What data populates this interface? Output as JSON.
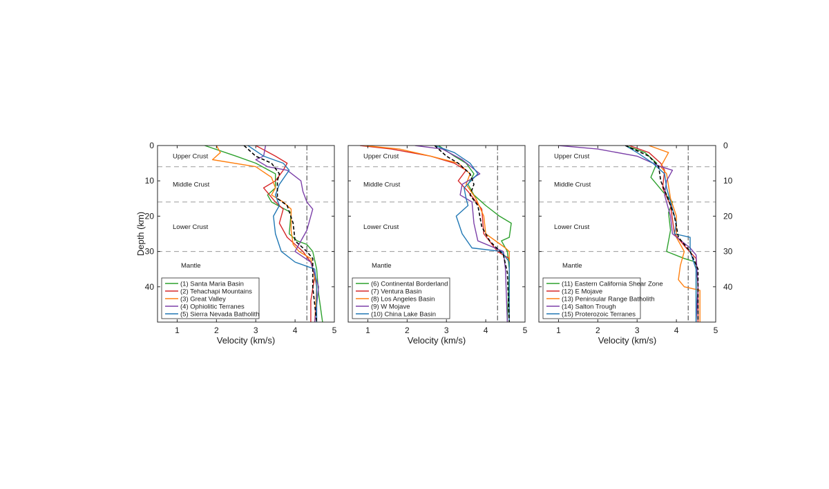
{
  "chart_data": [
    {
      "type": "line",
      "xlabel": "Velocity (km/s)",
      "ylabel": "Depth (km)",
      "xlim": [
        0.5,
        5
      ],
      "ylim": [
        0,
        50
      ],
      "y_reversed": true,
      "xticks": [
        "1",
        "2",
        "3",
        "4",
        "5"
      ],
      "yticks": [
        "0",
        "10",
        "20",
        "30",
        "40"
      ],
      "layer_boundaries": [
        6,
        16,
        30
      ],
      "reference_velocity": 4.3,
      "layers": [
        {
          "label": "Upper Crust",
          "depth": 3
        },
        {
          "label": "Middle Crust",
          "depth": 11
        },
        {
          "label": "Lower Crust",
          "depth": 23
        },
        {
          "label": "Mantle",
          "depth": 34
        }
      ],
      "legend_position": "bottom-right",
      "average_profile": {
        "color": "#000000",
        "points": [
          [
            2.7,
            0
          ],
          [
            3.0,
            3
          ],
          [
            3.4,
            5
          ],
          [
            3.6,
            8
          ],
          [
            3.55,
            10
          ],
          [
            3.55,
            15
          ],
          [
            3.8,
            17
          ],
          [
            3.95,
            22
          ],
          [
            4.0,
            27
          ],
          [
            4.3,
            30
          ],
          [
            4.45,
            32
          ],
          [
            4.45,
            40
          ],
          [
            4.55,
            50
          ]
        ]
      },
      "series": [
        {
          "name": "(1) Santa Maria Basin",
          "color": "#2ca02c",
          "points": [
            [
              1.7,
              0
            ],
            [
              2.5,
              3
            ],
            [
              3.0,
              5
            ],
            [
              3.5,
              8
            ],
            [
              3.5,
              12
            ],
            [
              3.3,
              14
            ],
            [
              3.4,
              16
            ],
            [
              3.9,
              19
            ],
            [
              3.85,
              25
            ],
            [
              4.05,
              27
            ],
            [
              4.3,
              28
            ],
            [
              4.45,
              30
            ],
            [
              4.55,
              35
            ],
            [
              4.6,
              42
            ],
            [
              4.7,
              50
            ]
          ]
        },
        {
          "name": "(2) Tehachapi Mountains",
          "color": "#d62728",
          "points": [
            [
              3.0,
              0
            ],
            [
              3.5,
              3
            ],
            [
              3.8,
              5
            ],
            [
              3.7,
              7
            ],
            [
              3.5,
              10
            ],
            [
              3.2,
              12
            ],
            [
              3.5,
              16
            ],
            [
              3.7,
              18
            ],
            [
              3.6,
              22
            ],
            [
              3.8,
              26
            ],
            [
              4.2,
              30
            ],
            [
              4.4,
              33
            ],
            [
              4.5,
              37
            ],
            [
              4.4,
              44
            ],
            [
              4.4,
              50
            ]
          ]
        },
        {
          "name": "(3) Great Valley",
          "color": "#ff7f0e",
          "points": [
            [
              2.0,
              0
            ],
            [
              2.1,
              2
            ],
            [
              1.9,
              4
            ],
            [
              3.0,
              6
            ],
            [
              3.4,
              9
            ],
            [
              3.5,
              12
            ],
            [
              3.4,
              14
            ],
            [
              3.7,
              16
            ],
            [
              3.9,
              18
            ],
            [
              3.9,
              24
            ],
            [
              3.95,
              28
            ],
            [
              4.1,
              30
            ],
            [
              4.4,
              32
            ],
            [
              4.55,
              40
            ],
            [
              4.5,
              50
            ]
          ]
        },
        {
          "name": "(4) Ophiolitic Terranes",
          "color": "#7b3fa8",
          "points": [
            [
              3.25,
              0
            ],
            [
              3.2,
              3
            ],
            [
              3.0,
              4
            ],
            [
              3.3,
              6
            ],
            [
              3.8,
              7
            ],
            [
              4.15,
              10
            ],
            [
              4.2,
              13
            ],
            [
              4.3,
              16
            ],
            [
              4.45,
              18
            ],
            [
              4.3,
              24
            ],
            [
              4.1,
              28
            ],
            [
              4.0,
              30
            ],
            [
              4.4,
              33
            ],
            [
              4.6,
              40
            ],
            [
              4.5,
              50
            ]
          ]
        },
        {
          "name": "(5) Sierra Nevada Batholith",
          "color": "#1f77b4",
          "points": [
            [
              2.8,
              0
            ],
            [
              3.2,
              3
            ],
            [
              3.7,
              5
            ],
            [
              3.85,
              7
            ],
            [
              3.6,
              11
            ],
            [
              3.5,
              14
            ],
            [
              3.6,
              17
            ],
            [
              3.45,
              20
            ],
            [
              3.5,
              25
            ],
            [
              3.65,
              30
            ],
            [
              4.0,
              33
            ],
            [
              4.5,
              35
            ],
            [
              4.55,
              40
            ],
            [
              4.55,
              50
            ]
          ]
        }
      ]
    },
    {
      "type": "line",
      "xlabel": "Velocity (km/s)",
      "ylabel": "",
      "xlim": [
        0.5,
        5
      ],
      "ylim": [
        0,
        50
      ],
      "y_reversed": true,
      "xticks": [
        "1",
        "2",
        "3",
        "4",
        "5"
      ],
      "yticks": [],
      "layer_boundaries": [
        6,
        16,
        30
      ],
      "reference_velocity": 4.3,
      "layers": [
        {
          "label": "Upper Crust",
          "depth": 3
        },
        {
          "label": "Middle Crust",
          "depth": 11
        },
        {
          "label": "Lower Crust",
          "depth": 23
        },
        {
          "label": "Mantle",
          "depth": 34
        }
      ],
      "legend_position": "bottom-right",
      "average_profile": {
        "color": "#000000",
        "points": [
          [
            2.7,
            0
          ],
          [
            3.0,
            3
          ],
          [
            3.3,
            5
          ],
          [
            3.6,
            8
          ],
          [
            3.7,
            11
          ],
          [
            3.6,
            14
          ],
          [
            3.8,
            17
          ],
          [
            3.9,
            23
          ],
          [
            4.1,
            27
          ],
          [
            4.45,
            31
          ],
          [
            4.55,
            36
          ],
          [
            4.6,
            50
          ]
        ]
      },
      "series": [
        {
          "name": "(6) Continental Borderland",
          "color": "#2ca02c",
          "points": [
            [
              2.8,
              0
            ],
            [
              3.2,
              3
            ],
            [
              3.5,
              5
            ],
            [
              3.7,
              8
            ],
            [
              3.55,
              11
            ],
            [
              3.7,
              14
            ],
            [
              4.0,
              17
            ],
            [
              4.35,
              20
            ],
            [
              4.65,
              22
            ],
            [
              4.6,
              26
            ],
            [
              4.4,
              27
            ],
            [
              4.55,
              30
            ],
            [
              4.6,
              35
            ],
            [
              4.55,
              50
            ]
          ]
        },
        {
          "name": "(7) Ventura Basin",
          "color": "#d62728",
          "points": [
            [
              0.8,
              0
            ],
            [
              1.6,
              1
            ],
            [
              2.6,
              3
            ],
            [
              3.2,
              5
            ],
            [
              3.5,
              7
            ],
            [
              3.3,
              10
            ],
            [
              3.55,
              13
            ],
            [
              3.9,
              18
            ],
            [
              3.95,
              25
            ],
            [
              4.3,
              30
            ],
            [
              4.6,
              32
            ],
            [
              4.6,
              50
            ]
          ]
        },
        {
          "name": "(8) Los Angeles Basin",
          "color": "#ff7f0e",
          "points": [
            [
              0.9,
              0
            ],
            [
              1.8,
              1
            ],
            [
              2.6,
              3
            ],
            [
              3.3,
              5
            ],
            [
              3.6,
              8
            ],
            [
              3.5,
              11
            ],
            [
              3.75,
              15
            ],
            [
              3.95,
              20
            ],
            [
              4.0,
              25
            ],
            [
              4.5,
              29
            ],
            [
              4.6,
              30
            ],
            [
              4.6,
              50
            ]
          ]
        },
        {
          "name": "(9) W Mojave",
          "color": "#7b3fa8",
          "points": [
            [
              2.2,
              0
            ],
            [
              2.9,
              1
            ],
            [
              3.4,
              4
            ],
            [
              3.85,
              8
            ],
            [
              3.4,
              11
            ],
            [
              3.35,
              14
            ],
            [
              3.65,
              16
            ],
            [
              3.7,
              22
            ],
            [
              3.8,
              27
            ],
            [
              4.45,
              30
            ],
            [
              4.5,
              35
            ],
            [
              4.55,
              50
            ]
          ]
        },
        {
          "name": "(10) China Lake Basin",
          "color": "#1f77b4",
          "points": [
            [
              2.7,
              0
            ],
            [
              3.2,
              2
            ],
            [
              3.6,
              5
            ],
            [
              3.8,
              8
            ],
            [
              3.45,
              12
            ],
            [
              3.5,
              15
            ],
            [
              3.55,
              17
            ],
            [
              3.25,
              20
            ],
            [
              3.4,
              25
            ],
            [
              3.65,
              29
            ],
            [
              4.4,
              30
            ],
            [
              4.6,
              33
            ],
            [
              4.6,
              50
            ]
          ]
        }
      ]
    },
    {
      "type": "line",
      "xlabel": "Velocity (km/s)",
      "ylabel": "",
      "xlim": [
        0.5,
        5
      ],
      "ylim": [
        0,
        50
      ],
      "y_reversed": true,
      "y_axis_side": "right",
      "xticks": [
        "1",
        "2",
        "3",
        "4",
        "5"
      ],
      "yticks": [
        "0",
        "10",
        "20",
        "30",
        "40"
      ],
      "layer_boundaries": [
        6,
        16,
        30
      ],
      "reference_velocity": 4.3,
      "layers": [
        {
          "label": "Upper Crust",
          "depth": 3
        },
        {
          "label": "Middle Crust",
          "depth": 11
        },
        {
          "label": "Lower Crust",
          "depth": 23
        },
        {
          "label": "Mantle",
          "depth": 34
        }
      ],
      "legend_position": "bottom-right",
      "average_profile": {
        "color": "#000000",
        "points": [
          [
            2.7,
            0
          ],
          [
            3.3,
            3
          ],
          [
            3.55,
            6
          ],
          [
            3.6,
            10
          ],
          [
            3.75,
            14
          ],
          [
            3.95,
            20
          ],
          [
            4.05,
            26
          ],
          [
            4.35,
            30
          ],
          [
            4.55,
            35
          ],
          [
            4.55,
            50
          ]
        ]
      },
      "series": [
        {
          "name": "(11) Eastern California Shear Zone",
          "color": "#2ca02c",
          "points": [
            [
              2.7,
              0
            ],
            [
              3.2,
              2
            ],
            [
              3.5,
              5
            ],
            [
              3.35,
              9
            ],
            [
              3.5,
              11
            ],
            [
              3.65,
              13
            ],
            [
              3.9,
              16
            ],
            [
              3.8,
              19
            ],
            [
              3.85,
              24
            ],
            [
              3.75,
              30
            ],
            [
              4.2,
              32
            ],
            [
              4.5,
              33
            ],
            [
              4.5,
              50
            ]
          ]
        },
        {
          "name": "(12) E Mojave",
          "color": "#d62728",
          "points": [
            [
              2.8,
              0
            ],
            [
              3.3,
              2
            ],
            [
              3.6,
              5
            ],
            [
              3.7,
              7
            ],
            [
              3.65,
              12
            ],
            [
              3.85,
              17
            ],
            [
              3.95,
              25
            ],
            [
              4.25,
              29
            ],
            [
              4.5,
              32
            ],
            [
              4.55,
              40
            ],
            [
              4.55,
              50
            ]
          ]
        },
        {
          "name": "(13) Peninsular Range Batholith",
          "color": "#ff7f0e",
          "points": [
            [
              3.3,
              0
            ],
            [
              3.8,
              2
            ],
            [
              3.6,
              6
            ],
            [
              3.75,
              8
            ],
            [
              3.85,
              15
            ],
            [
              4.0,
              20
            ],
            [
              4.0,
              26
            ],
            [
              4.2,
              30
            ],
            [
              4.1,
              34
            ],
            [
              4.05,
              38
            ],
            [
              4.2,
              40
            ],
            [
              4.6,
              41
            ],
            [
              4.6,
              50
            ]
          ]
        },
        {
          "name": "(14) Salton Trough",
          "color": "#7b3fa8",
          "points": [
            [
              1.0,
              0
            ],
            [
              2.0,
              1
            ],
            [
              3.0,
              3
            ],
            [
              3.6,
              6
            ],
            [
              3.9,
              7
            ],
            [
              3.75,
              10
            ],
            [
              3.7,
              14
            ],
            [
              3.85,
              20
            ],
            [
              3.9,
              25
            ],
            [
              4.35,
              29
            ],
            [
              4.5,
              31
            ],
            [
              4.55,
              40
            ],
            [
              4.5,
              50
            ]
          ]
        },
        {
          "name": "(15) Proterozoic Terranes",
          "color": "#1f77b4",
          "points": [
            [
              2.7,
              0
            ],
            [
              3.0,
              2
            ],
            [
              3.4,
              5
            ],
            [
              3.7,
              8
            ],
            [
              3.75,
              12
            ],
            [
              3.85,
              16
            ],
            [
              4.0,
              22
            ],
            [
              3.95,
              25
            ],
            [
              4.35,
              26
            ],
            [
              4.35,
              30
            ],
            [
              4.5,
              35
            ],
            [
              4.5,
              50
            ]
          ]
        }
      ]
    }
  ]
}
